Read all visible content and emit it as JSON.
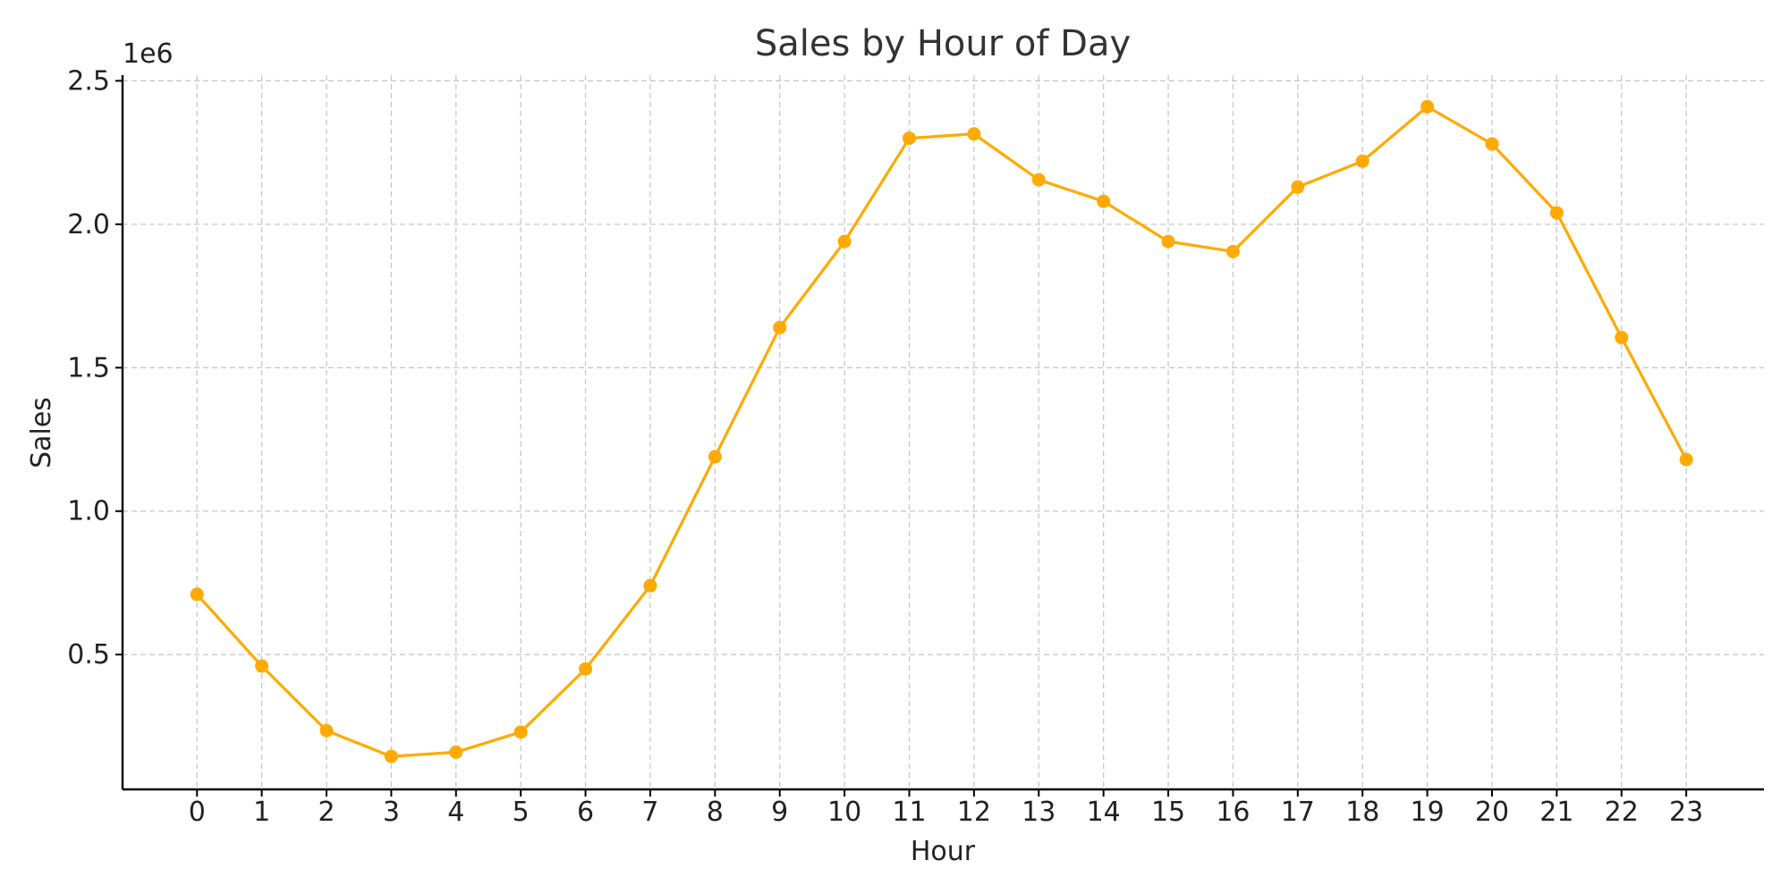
{
  "chart_data": {
    "type": "line",
    "title": "Sales by Hour of Day",
    "xlabel": "Hour",
    "ylabel": "Sales",
    "y_offset_label": "1e6",
    "x": [
      0,
      1,
      2,
      3,
      4,
      5,
      6,
      7,
      8,
      9,
      10,
      11,
      12,
      13,
      14,
      15,
      16,
      17,
      18,
      19,
      20,
      21,
      22,
      23
    ],
    "x_tick_labels": [
      "0",
      "1",
      "2",
      "3",
      "4",
      "5",
      "6",
      "7",
      "8",
      "9",
      "10",
      "11",
      "12",
      "13",
      "14",
      "15",
      "16",
      "17",
      "18",
      "19",
      "20",
      "21",
      "22",
      "23"
    ],
    "y_ticks": [
      0.5,
      1.0,
      1.5,
      2.0,
      2.5
    ],
    "y_tick_labels": [
      "0.5",
      "1.0",
      "1.5",
      "2.0",
      "2.5"
    ],
    "ylim": [
      0.03,
      2.52
    ],
    "xlim": [
      -1.15,
      24.2
    ],
    "series": [
      {
        "values": [
          0.71,
          0.46,
          0.235,
          0.145,
          0.16,
          0.23,
          0.45,
          0.74,
          1.19,
          1.64,
          1.94,
          2.3,
          2.315,
          2.155,
          2.08,
          1.94,
          1.905,
          2.13,
          2.22,
          2.41,
          2.28,
          2.04,
          1.605,
          1.18
        ],
        "color": "#FFAA00"
      }
    ],
    "grid": true,
    "legend": "none"
  }
}
